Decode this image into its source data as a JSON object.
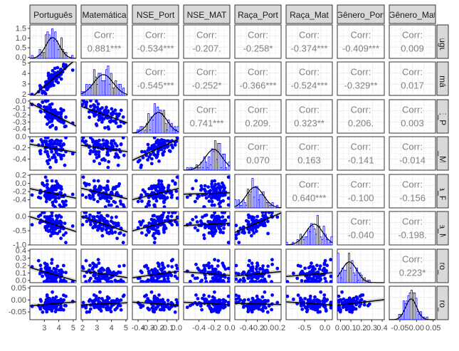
{
  "chart_data": {
    "type": "scatter-matrix",
    "variables": [
      "Português",
      "Matemática",
      "NSE_Port",
      "NSE_MAT",
      "Raça_Port",
      "Raça_Mat",
      "Gênero_Port",
      "Gênero_Mat"
    ],
    "strip_top": [
      "Português",
      "Matemática",
      "NSE_Port",
      "NSE_MAT",
      "Raça_Port",
      "Raça_Mat",
      "Gênero_Port",
      "Gênero_Mat"
    ],
    "strip_right": [
      "Português",
      "Matemática",
      "NSE_Port",
      "NSE_MAT",
      "Raça_Port",
      "Raça_Mat",
      "Gênero_Port",
      "Gênero_Mat"
    ],
    "corr_label": "Corr:",
    "correlations": [
      {
        "row": 0,
        "col": 1,
        "value": "0.881***"
      },
      {
        "row": 0,
        "col": 2,
        "value": "-0.534***"
      },
      {
        "row": 0,
        "col": 3,
        "value": "-0.207."
      },
      {
        "row": 0,
        "col": 4,
        "value": "-0.258*"
      },
      {
        "row": 0,
        "col": 5,
        "value": "-0.374***"
      },
      {
        "row": 0,
        "col": 6,
        "value": "-0.409***"
      },
      {
        "row": 0,
        "col": 7,
        "value": "0.009"
      },
      {
        "row": 1,
        "col": 2,
        "value": "-0.545***"
      },
      {
        "row": 1,
        "col": 3,
        "value": "-0.252*"
      },
      {
        "row": 1,
        "col": 4,
        "value": "-0.366***"
      },
      {
        "row": 1,
        "col": 5,
        "value": "-0.524***"
      },
      {
        "row": 1,
        "col": 6,
        "value": "-0.329**"
      },
      {
        "row": 1,
        "col": 7,
        "value": "0.017"
      },
      {
        "row": 2,
        "col": 3,
        "value": "0.741***"
      },
      {
        "row": 2,
        "col": 4,
        "value": "0.209."
      },
      {
        "row": 2,
        "col": 5,
        "value": "0.323**"
      },
      {
        "row": 2,
        "col": 6,
        "value": "0.206."
      },
      {
        "row": 2,
        "col": 7,
        "value": "0.003"
      },
      {
        "row": 3,
        "col": 4,
        "value": "0.070"
      },
      {
        "row": 3,
        "col": 5,
        "value": "0.163"
      },
      {
        "row": 3,
        "col": 6,
        "value": "-0.141"
      },
      {
        "row": 3,
        "col": 7,
        "value": "-0.014"
      },
      {
        "row": 4,
        "col": 5,
        "value": "0.640***"
      },
      {
        "row": 4,
        "col": 6,
        "value": "-0.100"
      },
      {
        "row": 4,
        "col": 7,
        "value": "-0.156"
      },
      {
        "row": 5,
        "col": 6,
        "value": "-0.040"
      },
      {
        "row": 5,
        "col": 7,
        "value": "-0.198."
      },
      {
        "row": 6,
        "col": 7,
        "value": "0.223*"
      }
    ],
    "x_axes": [
      {
        "ticks": [
          3,
          4,
          5
        ],
        "range": [
          2.0,
          5.2
        ]
      },
      {
        "ticks": [
          2,
          3,
          4,
          5
        ],
        "range": [
          1.9,
          5.1
        ]
      },
      {
        "ticks": [
          -0.4,
          -0.3,
          -0.2,
          -0.1,
          0.0
        ],
        "labels": [
          "-0.4",
          "-0.3",
          "-0.2",
          "-0.1",
          "0.0"
        ],
        "range": [
          -0.46,
          0.02
        ]
      },
      {
        "ticks": [
          -0.4,
          -0.2,
          0.0
        ],
        "labels": [
          "-0.4",
          "-0.2",
          "0.0"
        ],
        "range": [
          -0.6,
          0.0
        ]
      },
      {
        "ticks": [
          -0.4,
          -0.2,
          0.0,
          0.2
        ],
        "labels": [
          "-0.4",
          "-0.2",
          "0.0",
          "0.2"
        ],
        "range": [
          -0.6,
          0.22
        ]
      },
      {
        "ticks": [
          -0.5,
          0.0
        ],
        "labels": [
          "-0.5",
          "0.0"
        ],
        "range": [
          -0.95,
          0.18
        ]
      },
      {
        "ticks": [
          0.0,
          0.1,
          0.2,
          0.3,
          0.4
        ],
        "labels": [
          "0.0",
          "0.1",
          "0.2",
          "0.3",
          "0.4"
        ],
        "range": [
          -0.03,
          0.42
        ]
      },
      {
        "ticks": [
          -0.05,
          0.0,
          0.05
        ],
        "labels": [
          "-0.05",
          "0.00",
          "0.05"
        ],
        "range": [
          -0.082,
          0.057
        ]
      }
    ],
    "y_axes": [
      {
        "ticks": [
          0.0,
          0.5,
          1.0,
          1.5
        ],
        "labels": [
          "0.0",
          "0.5",
          "1.0",
          "1.5"
        ],
        "range": [
          -0.05,
          1.68
        ]
      },
      {
        "ticks": [
          2,
          3,
          4,
          5
        ],
        "range": [
          1.9,
          5.1
        ]
      },
      {
        "ticks": [
          0.0,
          -0.1,
          -0.2,
          -0.3,
          -0.4
        ],
        "labels": [
          "0.0",
          "-0.1",
          "-0.2",
          "-0.3",
          "-0.4"
        ],
        "range": [
          -0.46,
          0.02
        ]
      },
      {
        "ticks": [
          0.0,
          -0.2,
          -0.4
        ],
        "labels": [
          "0.0",
          "-0.2",
          "-0.4"
        ],
        "range": [
          -0.6,
          0.0
        ]
      },
      {
        "ticks": [
          0.2,
          0.0,
          -0.2,
          -0.4
        ],
        "labels": [
          "0.2",
          "0.0",
          "-0.2",
          "-0.4"
        ],
        "range": [
          -0.6,
          0.22
        ]
      },
      {
        "ticks": [
          0.0,
          -0.5,
          -1.0
        ],
        "labels": [
          "0.0",
          "-0.5",
          "-1.0"
        ],
        "range": [
          -1.0,
          0.18
        ]
      },
      {
        "ticks": [
          0.4,
          0.3,
          0.2,
          0.1,
          0.0
        ],
        "labels": [
          "0.4",
          "0.3",
          "0.2",
          "0.1",
          "0.0"
        ],
        "range": [
          -0.03,
          0.42
        ]
      },
      {
        "ticks": [
          0.05,
          0.0,
          -0.05
        ],
        "labels": [
          "0.05",
          "0.00",
          "-0.05"
        ],
        "range": [
          -0.082,
          0.057
        ]
      }
    ],
    "colors": {
      "points": "#0000FF",
      "fit_line": "#000000",
      "ribbon": "#B5B5B5",
      "hist_fill": "#FFFFFF",
      "hist_stroke": "#0000FF",
      "density": "#000000",
      "strip_fill": "#D9D9D9",
      "panel_border": "#333333",
      "grid": "#EBEBEB",
      "corr_text": "#808080"
    },
    "grid": true
  }
}
